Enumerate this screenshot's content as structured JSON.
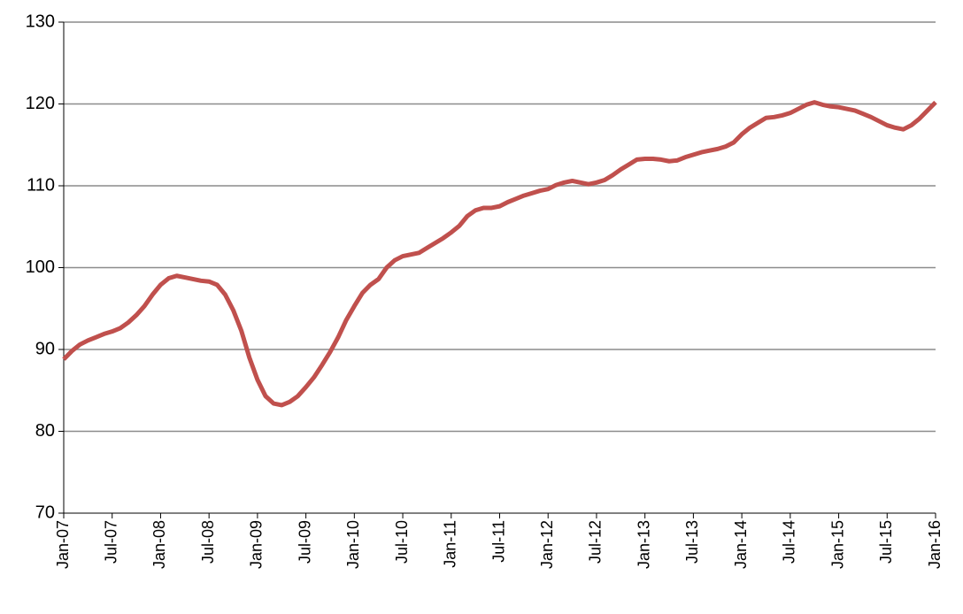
{
  "chart_data": {
    "type": "line",
    "categories": [
      "Jan-07",
      null,
      null,
      null,
      null,
      null,
      "Jul-07",
      null,
      null,
      null,
      null,
      null,
      "Jan-08",
      null,
      null,
      null,
      null,
      null,
      "Jul-08",
      null,
      null,
      null,
      null,
      null,
      "Jan-09",
      null,
      null,
      null,
      null,
      null,
      "Jul-09",
      null,
      null,
      null,
      null,
      null,
      "Jan-10",
      null,
      null,
      null,
      null,
      null,
      "Jul-10",
      null,
      null,
      null,
      null,
      null,
      "Jan-11",
      null,
      null,
      null,
      null,
      null,
      "Jul-11",
      null,
      null,
      null,
      null,
      null,
      "Jan-12",
      null,
      null,
      null,
      null,
      null,
      "Jul-12",
      null,
      null,
      null,
      null,
      null,
      "Jan-13",
      null,
      null,
      null,
      null,
      null,
      "Jul-13",
      null,
      null,
      null,
      null,
      null,
      "Jan-14",
      null,
      null,
      null,
      null,
      null,
      "Jul-14",
      null,
      null,
      null,
      null,
      null,
      "Jan-15",
      null,
      null,
      null,
      null,
      null,
      "Jul-15",
      null,
      null,
      null,
      null,
      null,
      "Jan-16"
    ],
    "values": [
      88.8,
      89.8,
      90.6,
      91.1,
      91.5,
      91.9,
      92.2,
      92.6,
      93.3,
      94.2,
      95.3,
      96.7,
      97.9,
      98.7,
      99.0,
      98.8,
      98.6,
      98.4,
      98.3,
      97.9,
      96.7,
      94.8,
      92.3,
      89.0,
      86.3,
      84.3,
      83.4,
      83.2,
      83.6,
      84.3,
      85.4,
      86.6,
      88.1,
      89.7,
      91.5,
      93.6,
      95.3,
      96.9,
      97.9,
      98.6,
      100.0,
      100.9,
      101.4,
      101.6,
      101.8,
      102.4,
      103.0,
      103.6,
      104.3,
      105.1,
      106.3,
      107.0,
      107.3,
      107.3,
      107.5,
      108.0,
      108.4,
      108.8,
      109.1,
      109.4,
      109.6,
      110.1,
      110.4,
      110.6,
      110.4,
      110.2,
      110.4,
      110.7,
      111.3,
      112.0,
      112.6,
      113.2,
      113.3,
      113.3,
      113.2,
      113.0,
      113.1,
      113.5,
      113.8,
      114.1,
      114.3,
      114.5,
      114.8,
      115.3,
      116.3,
      117.1,
      117.7,
      118.3,
      118.4,
      118.6,
      118.9,
      119.4,
      119.9,
      120.2,
      119.9,
      119.7,
      119.6,
      119.4,
      119.2,
      118.8,
      118.4,
      117.9,
      117.4,
      117.1,
      116.9,
      117.4,
      118.2,
      119.2,
      120.2
    ],
    "color": "#c0504d",
    "ylim": [
      70,
      130
    ],
    "yticks": [
      70,
      80,
      90,
      100,
      110,
      120,
      130
    ],
    "grid": true
  }
}
